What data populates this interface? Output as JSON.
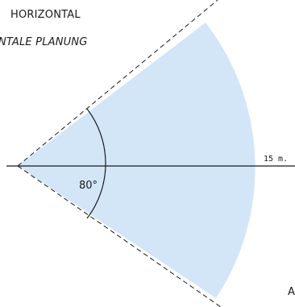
{
  "title": "HORIZONTAL",
  "subtitle": "NTALE PLANUNG",
  "angle_label": "80°",
  "range_label": "15 m.",
  "corner_label": "A",
  "colors": {
    "coverage_fill": "#d3e6f7",
    "line": "#1a1a1a",
    "background": "#ffffff"
  }
}
